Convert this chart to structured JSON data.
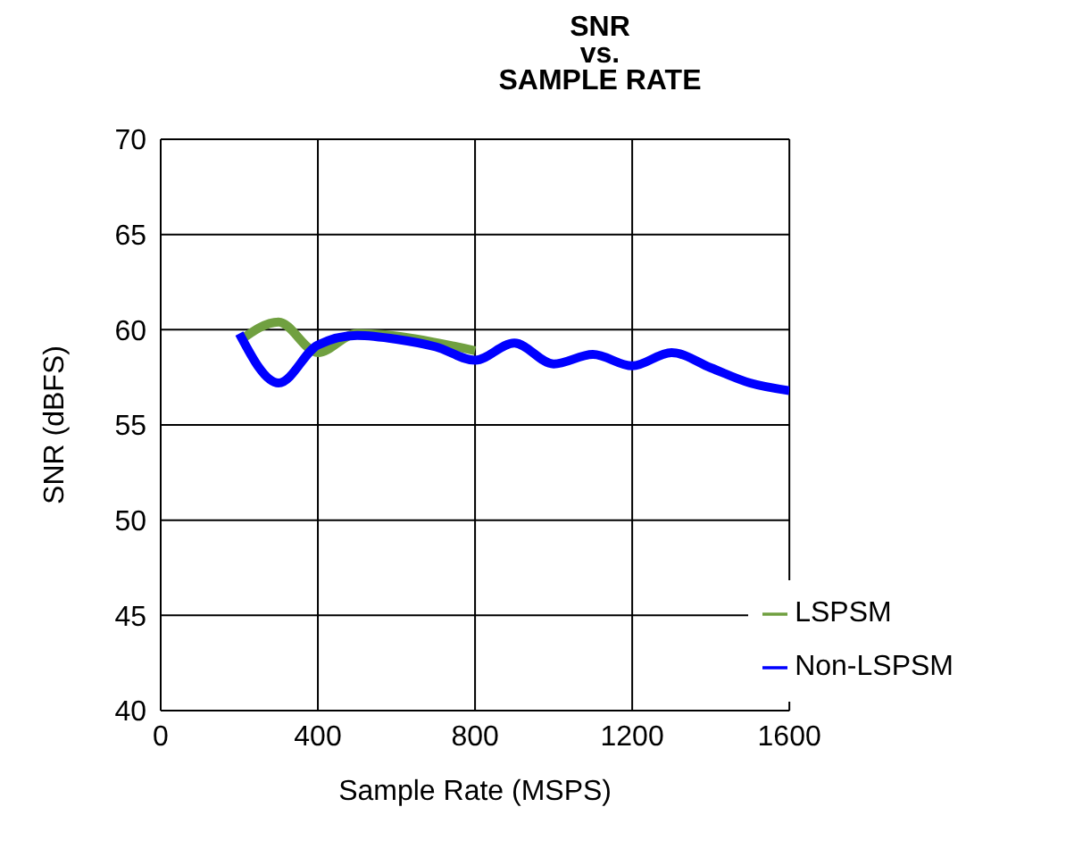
{
  "chart_data": {
    "type": "line",
    "title": "SNR\nvs.\nSAMPLE RATE",
    "xlabel": "Sample Rate (MSPS)",
    "ylabel": "SNR (dBFS)",
    "xlim": [
      0,
      1600
    ],
    "xticks": [
      0,
      400,
      800,
      1200,
      1600
    ],
    "ylim": [
      40,
      70
    ],
    "yticks": [
      40,
      45,
      50,
      55,
      60,
      65,
      70
    ],
    "grid": true,
    "legend": "bottom right",
    "marker": "none",
    "line_style": "solid",
    "series": [
      {
        "name": "LSPSM",
        "color": "#70a040",
        "x": [
          200,
          300,
          400,
          500,
          800
        ],
        "values": [
          59.4,
          60.4,
          58.8,
          59.8,
          58.9
        ]
      },
      {
        "name": "Non-LSPSM",
        "color": "#0000ff",
        "x": [
          200,
          300,
          400,
          500,
          600,
          700,
          800,
          900,
          1000,
          1100,
          1200,
          1300,
          1400,
          1500,
          1600
        ],
        "values": [
          59.8,
          57.2,
          59.2,
          59.7,
          59.5,
          59.1,
          58.4,
          59.3,
          58.2,
          58.7,
          58.1,
          58.8,
          58.0,
          57.2,
          56.8
        ]
      }
    ]
  }
}
